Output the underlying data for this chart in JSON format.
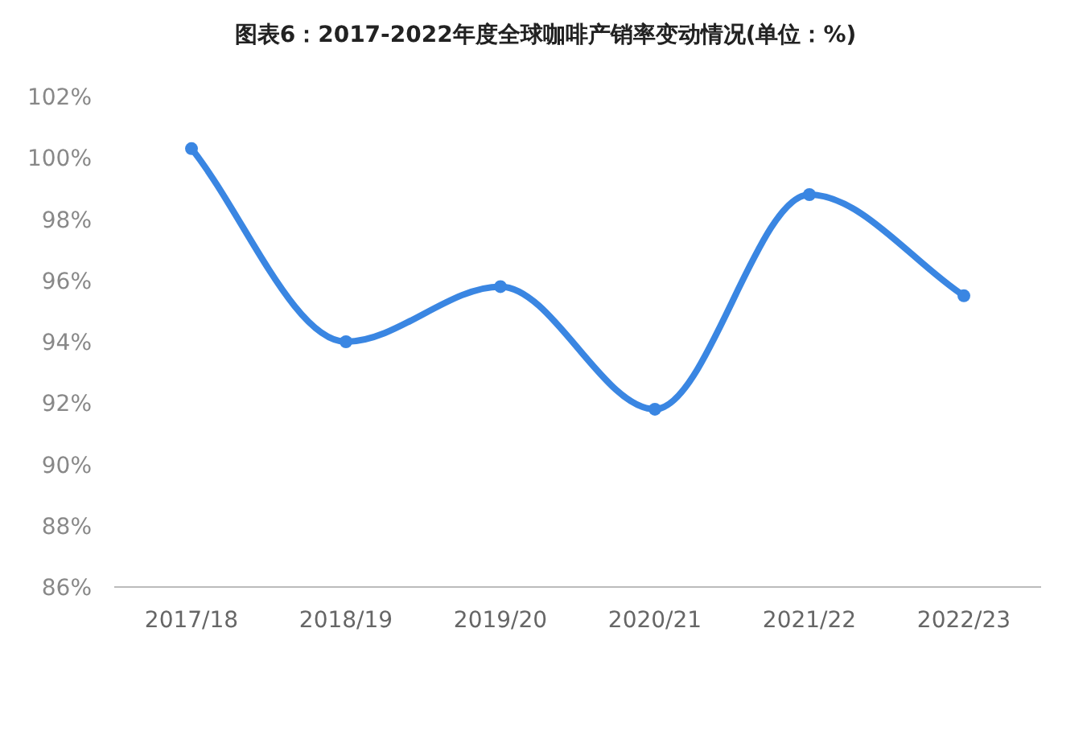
{
  "chart_data": {
    "type": "line",
    "title": "图表6：2017-2022年度全球咖啡产销率变动情况(单位：%)",
    "categories": [
      "2017/18",
      "2018/19",
      "2019/20",
      "2020/21",
      "2021/22",
      "2022/23"
    ],
    "series": [
      {
        "color": "#3a86e2",
        "values": [
          100.3,
          94.0,
          95.8,
          91.8,
          98.8,
          95.5
        ]
      }
    ],
    "ylim": [
      86,
      102
    ],
    "yticks": [
      {
        "value": 86,
        "label": "86%"
      },
      {
        "value": 88,
        "label": "88%"
      },
      {
        "value": 90,
        "label": "90%"
      },
      {
        "value": 92,
        "label": "92%"
      },
      {
        "value": 94,
        "label": "94%"
      },
      {
        "value": 96,
        "label": "96%"
      },
      {
        "value": 98,
        "label": "98%"
      },
      {
        "value": 100,
        "label": "100%"
      },
      {
        "value": 102,
        "label": "102%"
      }
    ],
    "marker": "circle",
    "line_style": "solid"
  }
}
